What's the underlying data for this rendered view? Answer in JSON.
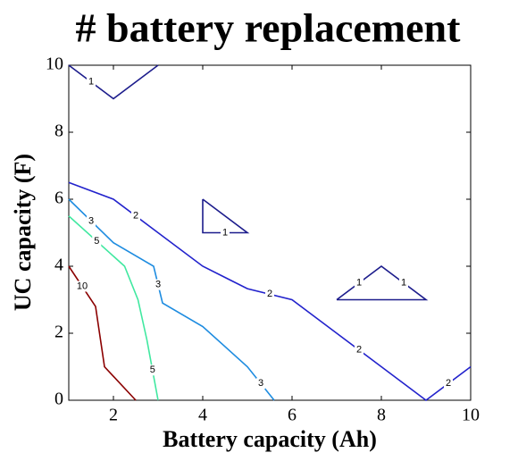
{
  "chart_data": {
    "type": "contour",
    "title": "# battery replacement",
    "x_label": "Battery capacity (Ah)",
    "y_label": "UC capacity (F)",
    "xlim": [
      1,
      10
    ],
    "ylim": [
      0,
      10
    ],
    "xticks": [
      2,
      4,
      6,
      8,
      10
    ],
    "yticks": [
      0,
      2,
      4,
      6,
      8,
      10
    ],
    "grid": false,
    "series": [
      {
        "name": "1",
        "color": "#1c1c8c",
        "x": [
          1,
          2,
          3,
          null,
          4,
          4,
          5,
          4,
          null,
          7,
          8,
          9,
          7
        ],
        "values": [
          10,
          9,
          10,
          null,
          6,
          5,
          5,
          6,
          null,
          3,
          4,
          3,
          3
        ]
      },
      {
        "name": "2",
        "color": "#2222cc",
        "x": [
          1,
          2,
          3,
          4,
          5,
          6,
          7,
          8,
          9,
          10
        ],
        "values": [
          6.5,
          6,
          5,
          4,
          3.33,
          3,
          2,
          1,
          0,
          1
        ]
      },
      {
        "name": "3",
        "color": "#1e8ce0",
        "x": [
          1,
          2,
          2.9,
          3.1,
          4,
          5,
          5.6
        ],
        "values": [
          6,
          4.7,
          4,
          2.9,
          2.2,
          1,
          0
        ]
      },
      {
        "name": "5",
        "color": "#40e8a0",
        "x": [
          1,
          2.25,
          2.55,
          2.75,
          3
        ],
        "values": [
          5.5,
          4,
          3,
          1.8,
          0
        ]
      },
      {
        "name": "10",
        "color": "#8b0000",
        "x": [
          1,
          1.6,
          1.8,
          2.5
        ],
        "values": [
          4,
          2.8,
          1,
          0
        ]
      }
    ]
  }
}
